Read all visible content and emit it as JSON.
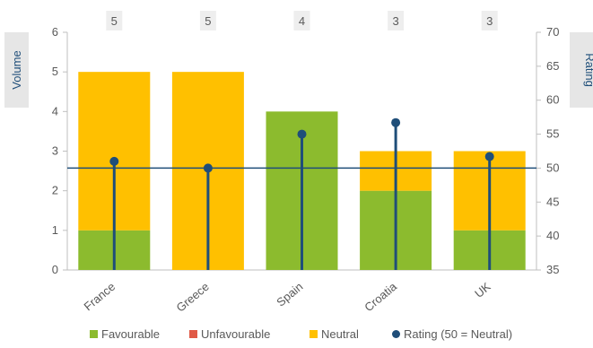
{
  "chart_data": {
    "type": "bar",
    "stacked": true,
    "categories": [
      "France",
      "Greece",
      "Spain",
      "Croatia",
      "UK"
    ],
    "series": [
      {
        "name": "Favourable",
        "values": [
          1,
          0,
          4,
          2,
          1
        ],
        "color": "#8cbb2e"
      },
      {
        "name": "Unfavourable",
        "values": [
          0,
          0,
          0,
          0,
          0
        ],
        "color": "#e05a47"
      },
      {
        "name": "Neutral",
        "values": [
          4,
          5,
          0,
          1,
          2
        ],
        "color": "#ffc000"
      }
    ],
    "totals": [
      "5",
      "5",
      "4",
      "3",
      "3"
    ],
    "rating": {
      "name": "Rating (50 = Neutral)",
      "values": [
        51,
        50,
        55,
        56.7,
        51.7
      ],
      "color": "#1f4e79",
      "neutral": 50
    },
    "left_axis": {
      "title": "Volume",
      "range": [
        0,
        6
      ],
      "ticks": [
        "0",
        "1",
        "2",
        "3",
        "4",
        "5",
        "6"
      ]
    },
    "right_axis": {
      "title": "Rating",
      "range": [
        35,
        70
      ],
      "ticks": [
        "35",
        "40",
        "45",
        "50",
        "55",
        "60",
        "65",
        "70"
      ]
    },
    "grid": false,
    "legend_position": "bottom"
  }
}
